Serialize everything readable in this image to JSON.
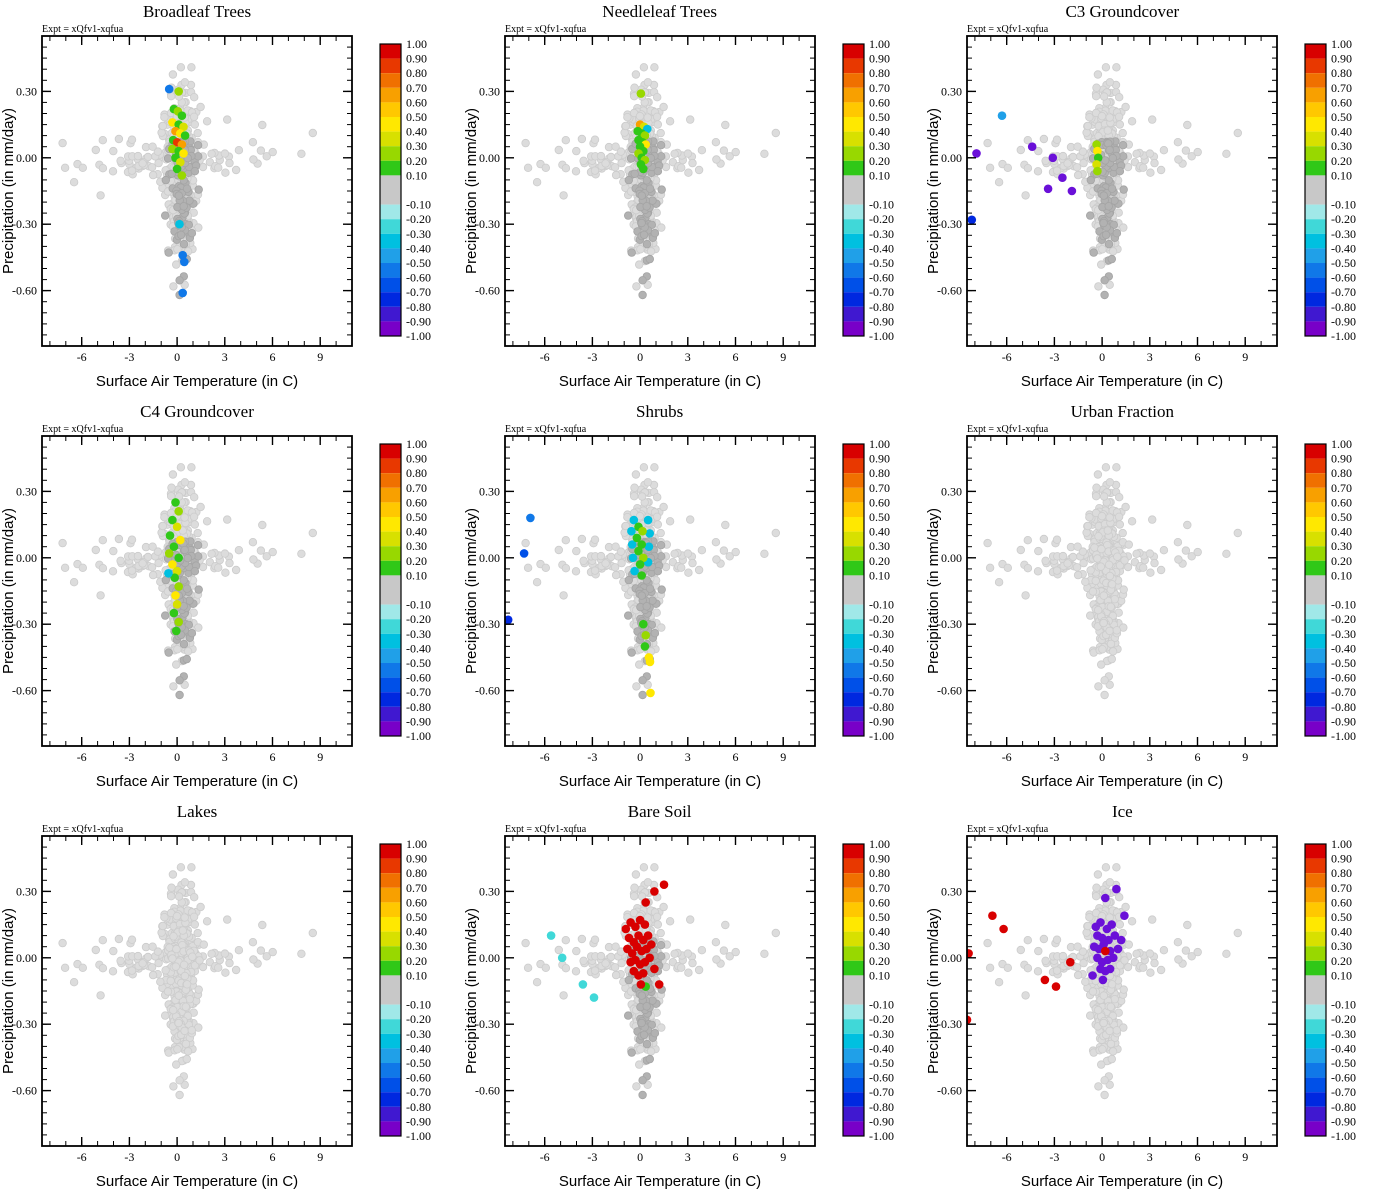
{
  "shared": {
    "annotation": "Expt = xQfv1-xqfua",
    "xlabel": "Surface Air Temperature (in C)",
    "ylabel": "Precipitation (in mm/day)",
    "xlim": [
      -8.5,
      11.0
    ],
    "ylim": [
      -0.85,
      0.55
    ],
    "x_ticks": [
      {
        "v": -6,
        "label": "-6"
      },
      {
        "v": -3,
        "label": "-3"
      },
      {
        "v": 0,
        "label": "0"
      },
      {
        "v": 3,
        "label": "3"
      },
      {
        "v": 6,
        "label": "6"
      },
      {
        "v": 9,
        "label": "9"
      }
    ],
    "y_ticks": [
      {
        "v": 0.3,
        "label": "0.30"
      },
      {
        "v": 0.0,
        "label": "0.00"
      },
      {
        "v": -0.3,
        "label": "-0.30"
      },
      {
        "v": -0.6,
        "label": "-0.60"
      }
    ],
    "x_minor_step": 1.0,
    "y_minor_step": 0.05,
    "colorbar": {
      "labels": [
        {
          "v": 1.0,
          "label": "1.00"
        },
        {
          "v": 0.9,
          "label": "0.90"
        },
        {
          "v": 0.8,
          "label": "0.80"
        },
        {
          "v": 0.7,
          "label": "0.70"
        },
        {
          "v": 0.6,
          "label": "0.60"
        },
        {
          "v": 0.5,
          "label": "0.50"
        },
        {
          "v": 0.4,
          "label": "0.40"
        },
        {
          "v": 0.3,
          "label": "0.30"
        },
        {
          "v": 0.2,
          "label": "0.20"
        },
        {
          "v": 0.1,
          "label": "0.10"
        },
        {
          "v": -0.1,
          "label": "-0.10"
        },
        {
          "v": -0.2,
          "label": "-0.20"
        },
        {
          "v": -0.3,
          "label": "-0.30"
        },
        {
          "v": -0.4,
          "label": "-0.40"
        },
        {
          "v": -0.5,
          "label": "-0.50"
        },
        {
          "v": -0.6,
          "label": "-0.60"
        },
        {
          "v": -0.7,
          "label": "-0.70"
        },
        {
          "v": -0.8,
          "label": "-0.80"
        },
        {
          "v": -0.9,
          "label": "-0.90"
        },
        {
          "v": -1.0,
          "label": "-1.00"
        }
      ],
      "segments": [
        {
          "v0": 1.0,
          "v1": 0.9,
          "color": "#d80000"
        },
        {
          "v0": 0.9,
          "v1": 0.8,
          "color": "#e83800"
        },
        {
          "v0": 0.8,
          "v1": 0.7,
          "color": "#f07000"
        },
        {
          "v0": 0.7,
          "v1": 0.6,
          "color": "#f8a000"
        },
        {
          "v0": 0.6,
          "v1": 0.5,
          "color": "#ffc800"
        },
        {
          "v0": 0.5,
          "v1": 0.4,
          "color": "#ffe800"
        },
        {
          "v0": 0.4,
          "v1": 0.3,
          "color": "#d8e000"
        },
        {
          "v0": 0.3,
          "v1": 0.2,
          "color": "#98d800"
        },
        {
          "v0": 0.2,
          "v1": 0.1,
          "color": "#30c818"
        },
        {
          "v0": 0.1,
          "v1": -0.1,
          "color": "#c8c8c8"
        },
        {
          "v0": -0.1,
          "v1": -0.2,
          "color": "#a0e8e8"
        },
        {
          "v0": -0.2,
          "v1": -0.3,
          "color": "#40d8d8"
        },
        {
          "v0": -0.3,
          "v1": -0.4,
          "color": "#00c0e0"
        },
        {
          "v0": -0.4,
          "v1": -0.5,
          "color": "#20a0e8"
        },
        {
          "v0": -0.5,
          "v1": -0.6,
          "color": "#1078e8"
        },
        {
          "v0": -0.6,
          "v1": -0.7,
          "color": "#0050e8"
        },
        {
          "v0": -0.7,
          "v1": -0.8,
          "color": "#0028e0"
        },
        {
          "v0": -0.8,
          "v1": -0.9,
          "color": "#4018d0"
        },
        {
          "v0": -0.9,
          "v1": -1.0,
          "color": "#7800c8"
        }
      ]
    },
    "cloud": {
      "seed": 7,
      "light_color": "#dcdcdc",
      "light_stroke": "#cccccc",
      "dark_color": "#b2b2b2",
      "dark_stroke": "#a4a4a4",
      "column": {
        "n": 430,
        "x_mean": 0.25,
        "x_sd": 0.5,
        "y_mean": -0.03,
        "y_sd": 0.17
      },
      "tail": {
        "n": 28,
        "x_mean": 0.3,
        "x_sd": 0.22,
        "y_start": -0.28,
        "y_sd": 0.14
      },
      "band": {
        "n": 70,
        "x_sd": 3.2,
        "y_sd": 0.04
      },
      "outliers": {
        "n": 22,
        "x_min": -7.6,
        "x_max": 9.6,
        "y_mean": 0.04,
        "y_sd": 0.1
      }
    }
  },
  "chart_data": [
    {
      "type": "scatter",
      "title": "Broadleaf Trees",
      "dark_subset": true,
      "points": [
        [
          -0.5,
          0.31,
          "#1078e8"
        ],
        [
          0.1,
          0.3,
          "#98d800"
        ],
        [
          -0.2,
          0.22,
          "#30c818"
        ],
        [
          0.05,
          0.21,
          "#98d800"
        ],
        [
          0.3,
          0.19,
          "#30c818"
        ],
        [
          -0.3,
          0.16,
          "#ffe800"
        ],
        [
          0.1,
          0.15,
          "#30c818"
        ],
        [
          0.4,
          0.14,
          "#d8e000"
        ],
        [
          -0.1,
          0.12,
          "#f8a000"
        ],
        [
          0.2,
          0.11,
          "#ffe800"
        ],
        [
          0.5,
          0.1,
          "#30c818"
        ],
        [
          -0.25,
          0.08,
          "#30c818"
        ],
        [
          0.0,
          0.07,
          "#e83800"
        ],
        [
          0.3,
          0.06,
          "#f8a000"
        ],
        [
          -0.3,
          0.04,
          "#98d800"
        ],
        [
          0.1,
          0.03,
          "#30c818"
        ],
        [
          0.4,
          0.02,
          "#ffe800"
        ],
        [
          -0.1,
          0.0,
          "#30c818"
        ],
        [
          0.2,
          -0.02,
          "#d8e000"
        ],
        [
          0.0,
          -0.05,
          "#30c818"
        ],
        [
          0.3,
          -0.08,
          "#98d800"
        ],
        [
          0.15,
          -0.3,
          "#00c0e0"
        ],
        [
          0.35,
          -0.44,
          "#1078e8"
        ],
        [
          0.45,
          -0.47,
          "#1078e8"
        ],
        [
          0.35,
          -0.61,
          "#1078e8"
        ]
      ]
    },
    {
      "type": "scatter",
      "title": "Needleleaf Trees",
      "dark_subset": true,
      "points": [
        [
          0.05,
          0.29,
          "#98d800"
        ],
        [
          0.0,
          0.15,
          "#f8a000"
        ],
        [
          0.25,
          0.14,
          "#d8e000"
        ],
        [
          0.45,
          0.13,
          "#00c0e0"
        ],
        [
          -0.15,
          0.12,
          "#30c818"
        ],
        [
          0.1,
          0.11,
          "#30c818"
        ],
        [
          0.3,
          0.1,
          "#98d800"
        ],
        [
          -0.1,
          0.08,
          "#30c818"
        ],
        [
          0.15,
          0.07,
          "#30c818"
        ],
        [
          0.35,
          0.06,
          "#ffe800"
        ],
        [
          0.0,
          0.05,
          "#30c818"
        ],
        [
          0.2,
          0.03,
          "#30c818"
        ],
        [
          -0.1,
          0.02,
          "#98d800"
        ],
        [
          0.1,
          0.0,
          "#30c818"
        ],
        [
          0.3,
          -0.01,
          "#98d800"
        ],
        [
          0.05,
          -0.03,
          "#30c818"
        ],
        [
          0.2,
          -0.05,
          "#30c818"
        ]
      ]
    },
    {
      "type": "scatter",
      "title": "C3 Groundcover",
      "dark_subset": true,
      "points": [
        [
          -6.3,
          0.19,
          "#20a0e8"
        ],
        [
          -7.9,
          0.02,
          "#6a10d8"
        ],
        [
          -4.4,
          0.05,
          "#6a10d8"
        ],
        [
          -3.1,
          0.0,
          "#6a10d8"
        ],
        [
          -2.5,
          -0.09,
          "#6a10d8"
        ],
        [
          -3.4,
          -0.14,
          "#6a10d8"
        ],
        [
          -1.9,
          -0.15,
          "#6a10d8"
        ],
        [
          -8.2,
          -0.28,
          "#0028e0"
        ],
        [
          -0.35,
          0.06,
          "#98d800"
        ],
        [
          -0.3,
          0.03,
          "#ffe800"
        ],
        [
          -0.25,
          0.0,
          "#30c818"
        ],
        [
          -0.35,
          -0.03,
          "#d8e000"
        ],
        [
          -0.3,
          -0.06,
          "#98d800"
        ]
      ]
    },
    {
      "type": "scatter",
      "title": "C4 Groundcover",
      "dark_subset": true,
      "points": [
        [
          -0.1,
          0.25,
          "#30c818"
        ],
        [
          0.1,
          0.21,
          "#98d800"
        ],
        [
          -0.3,
          0.17,
          "#30c818"
        ],
        [
          0.0,
          0.14,
          "#d8e000"
        ],
        [
          -0.45,
          0.1,
          "#30c818"
        ],
        [
          0.2,
          0.08,
          "#ffe800"
        ],
        [
          -0.2,
          0.05,
          "#30c818"
        ],
        [
          -0.5,
          0.02,
          "#98d800"
        ],
        [
          0.1,
          0.0,
          "#30c818"
        ],
        [
          -0.3,
          -0.03,
          "#ffe800"
        ],
        [
          0.0,
          -0.06,
          "#d8e000"
        ],
        [
          -0.15,
          -0.09,
          "#30c818"
        ],
        [
          -0.55,
          -0.07,
          "#00c0e0"
        ],
        [
          0.1,
          -0.13,
          "#98d800"
        ],
        [
          -0.1,
          -0.17,
          "#ffe800"
        ],
        [
          0.0,
          -0.21,
          "#d8e000"
        ],
        [
          -0.2,
          -0.25,
          "#30c818"
        ],
        [
          0.1,
          -0.29,
          "#98d800"
        ],
        [
          -0.05,
          -0.33,
          "#30c818"
        ]
      ]
    },
    {
      "type": "scatter",
      "title": "Shrubs",
      "dark_subset": true,
      "points": [
        [
          -6.9,
          0.18,
          "#1078e8"
        ],
        [
          -7.3,
          0.02,
          "#0050e8"
        ],
        [
          -8.3,
          -0.28,
          "#0028e0"
        ],
        [
          -0.4,
          0.17,
          "#00c0e0"
        ],
        [
          0.5,
          0.17,
          "#00c0e0"
        ],
        [
          -0.55,
          0.12,
          "#00c0e0"
        ],
        [
          0.6,
          0.11,
          "#00c0e0"
        ],
        [
          -0.5,
          0.06,
          "#00c0e0"
        ],
        [
          0.55,
          0.05,
          "#00c0e0"
        ],
        [
          -0.45,
          0.0,
          "#00c0e0"
        ],
        [
          0.5,
          -0.02,
          "#00c0e0"
        ],
        [
          -0.35,
          -0.06,
          "#00c0e0"
        ],
        [
          -0.1,
          0.14,
          "#30c818"
        ],
        [
          0.15,
          0.12,
          "#98d800"
        ],
        [
          -0.2,
          0.09,
          "#30c818"
        ],
        [
          0.1,
          0.06,
          "#30c818"
        ],
        [
          -0.1,
          0.03,
          "#30c818"
        ],
        [
          0.2,
          0.0,
          "#98d800"
        ],
        [
          0.0,
          -0.03,
          "#30c818"
        ],
        [
          0.1,
          -0.08,
          "#30c818"
        ],
        [
          0.2,
          -0.3,
          "#30c818"
        ],
        [
          0.35,
          -0.35,
          "#98d800"
        ],
        [
          0.3,
          -0.4,
          "#30c818"
        ],
        [
          0.55,
          -0.45,
          "#ffe800"
        ],
        [
          0.62,
          -0.47,
          "#ffe800"
        ],
        [
          0.65,
          -0.61,
          "#ffe800"
        ]
      ]
    },
    {
      "type": "scatter",
      "title": "Urban Fraction",
      "dark_subset": false,
      "points": []
    },
    {
      "type": "scatter",
      "title": "Lakes",
      "dark_subset": false,
      "points": []
    },
    {
      "type": "scatter",
      "title": "Bare Soil",
      "dark_subset": true,
      "points": [
        [
          1.5,
          0.33,
          "#d80000"
        ],
        [
          0.9,
          0.3,
          "#d80000"
        ],
        [
          0.35,
          0.25,
          "#d80000"
        ],
        [
          -5.6,
          0.1,
          "#40d8d8"
        ],
        [
          -4.9,
          0.0,
          "#40d8d8"
        ],
        [
          -3.6,
          -0.12,
          "#40d8d8"
        ],
        [
          -2.9,
          -0.18,
          "#40d8d8"
        ],
        [
          -0.9,
          0.13,
          "#d80000"
        ],
        [
          -0.6,
          0.16,
          "#d80000"
        ],
        [
          -0.3,
          0.14,
          "#d80000"
        ],
        [
          0.0,
          0.17,
          "#d80000"
        ],
        [
          0.3,
          0.15,
          "#d80000"
        ],
        [
          -0.7,
          0.09,
          "#d80000"
        ],
        [
          -0.4,
          0.07,
          "#d80000"
        ],
        [
          -0.1,
          0.1,
          "#d80000"
        ],
        [
          0.2,
          0.08,
          "#d80000"
        ],
        [
          0.5,
          0.1,
          "#d80000"
        ],
        [
          -0.8,
          0.04,
          "#d80000"
        ],
        [
          -0.5,
          0.02,
          "#d80000"
        ],
        [
          -0.2,
          0.05,
          "#d80000"
        ],
        [
          0.1,
          0.03,
          "#d80000"
        ],
        [
          0.4,
          0.04,
          "#d80000"
        ],
        [
          0.7,
          0.06,
          "#d80000"
        ],
        [
          -0.6,
          -0.02,
          "#d80000"
        ],
        [
          -0.3,
          -0.01,
          "#d80000"
        ],
        [
          0.0,
          -0.03,
          "#d80000"
        ],
        [
          0.3,
          -0.02,
          "#d80000"
        ],
        [
          0.6,
          0.0,
          "#d80000"
        ],
        [
          -0.4,
          -0.06,
          "#d80000"
        ],
        [
          -0.1,
          -0.08,
          "#d80000"
        ],
        [
          0.2,
          -0.07,
          "#d80000"
        ],
        [
          0.9,
          -0.05,
          "#d80000"
        ],
        [
          1.2,
          -0.12,
          "#d80000"
        ],
        [
          0.35,
          -0.13,
          "#30c818"
        ],
        [
          0.05,
          -0.12,
          "#d80000"
        ]
      ]
    },
    {
      "type": "scatter",
      "title": "Ice",
      "dark_subset": false,
      "points": [
        [
          -6.9,
          0.19,
          "#d80000"
        ],
        [
          -6.2,
          0.13,
          "#d80000"
        ],
        [
          -8.4,
          0.02,
          "#d80000"
        ],
        [
          -8.5,
          -0.28,
          "#d80000"
        ],
        [
          -3.6,
          -0.1,
          "#d80000"
        ],
        [
          -2.9,
          -0.13,
          "#d80000"
        ],
        [
          -2.0,
          -0.02,
          "#d80000"
        ],
        [
          0.9,
          0.31,
          "#6a10d8"
        ],
        [
          0.2,
          0.27,
          "#6a10d8"
        ],
        [
          1.4,
          0.19,
          "#6a10d8"
        ],
        [
          -0.4,
          0.14,
          "#6a10d8"
        ],
        [
          -0.1,
          0.16,
          "#6a10d8"
        ],
        [
          0.3,
          0.13,
          "#6a10d8"
        ],
        [
          0.6,
          0.15,
          "#6a10d8"
        ],
        [
          -0.3,
          0.1,
          "#6a10d8"
        ],
        [
          0.0,
          0.09,
          "#6a10d8"
        ],
        [
          0.4,
          0.08,
          "#6a10d8"
        ],
        [
          0.8,
          0.1,
          "#6a10d8"
        ],
        [
          -0.5,
          0.05,
          "#6a10d8"
        ],
        [
          -0.2,
          0.04,
          "#6a10d8"
        ],
        [
          0.1,
          0.06,
          "#6a10d8"
        ],
        [
          0.5,
          0.03,
          "#6a10d8"
        ],
        [
          0.2,
          0.03,
          "#d80000"
        ],
        [
          -0.3,
          0.0,
          "#6a10d8"
        ],
        [
          0.0,
          -0.02,
          "#6a10d8"
        ],
        [
          0.35,
          -0.01,
          "#6a10d8"
        ],
        [
          0.7,
          0.0,
          "#6a10d8"
        ],
        [
          -0.1,
          -0.05,
          "#6a10d8"
        ],
        [
          0.2,
          -0.06,
          "#6a10d8"
        ],
        [
          0.5,
          -0.05,
          "#6a10d8"
        ],
        [
          1.0,
          0.04,
          "#6a10d8"
        ],
        [
          1.2,
          0.08,
          "#6a10d8"
        ],
        [
          -0.6,
          -0.08,
          "#6a10d8"
        ],
        [
          0.05,
          -0.1,
          "#6a10d8"
        ]
      ]
    }
  ]
}
